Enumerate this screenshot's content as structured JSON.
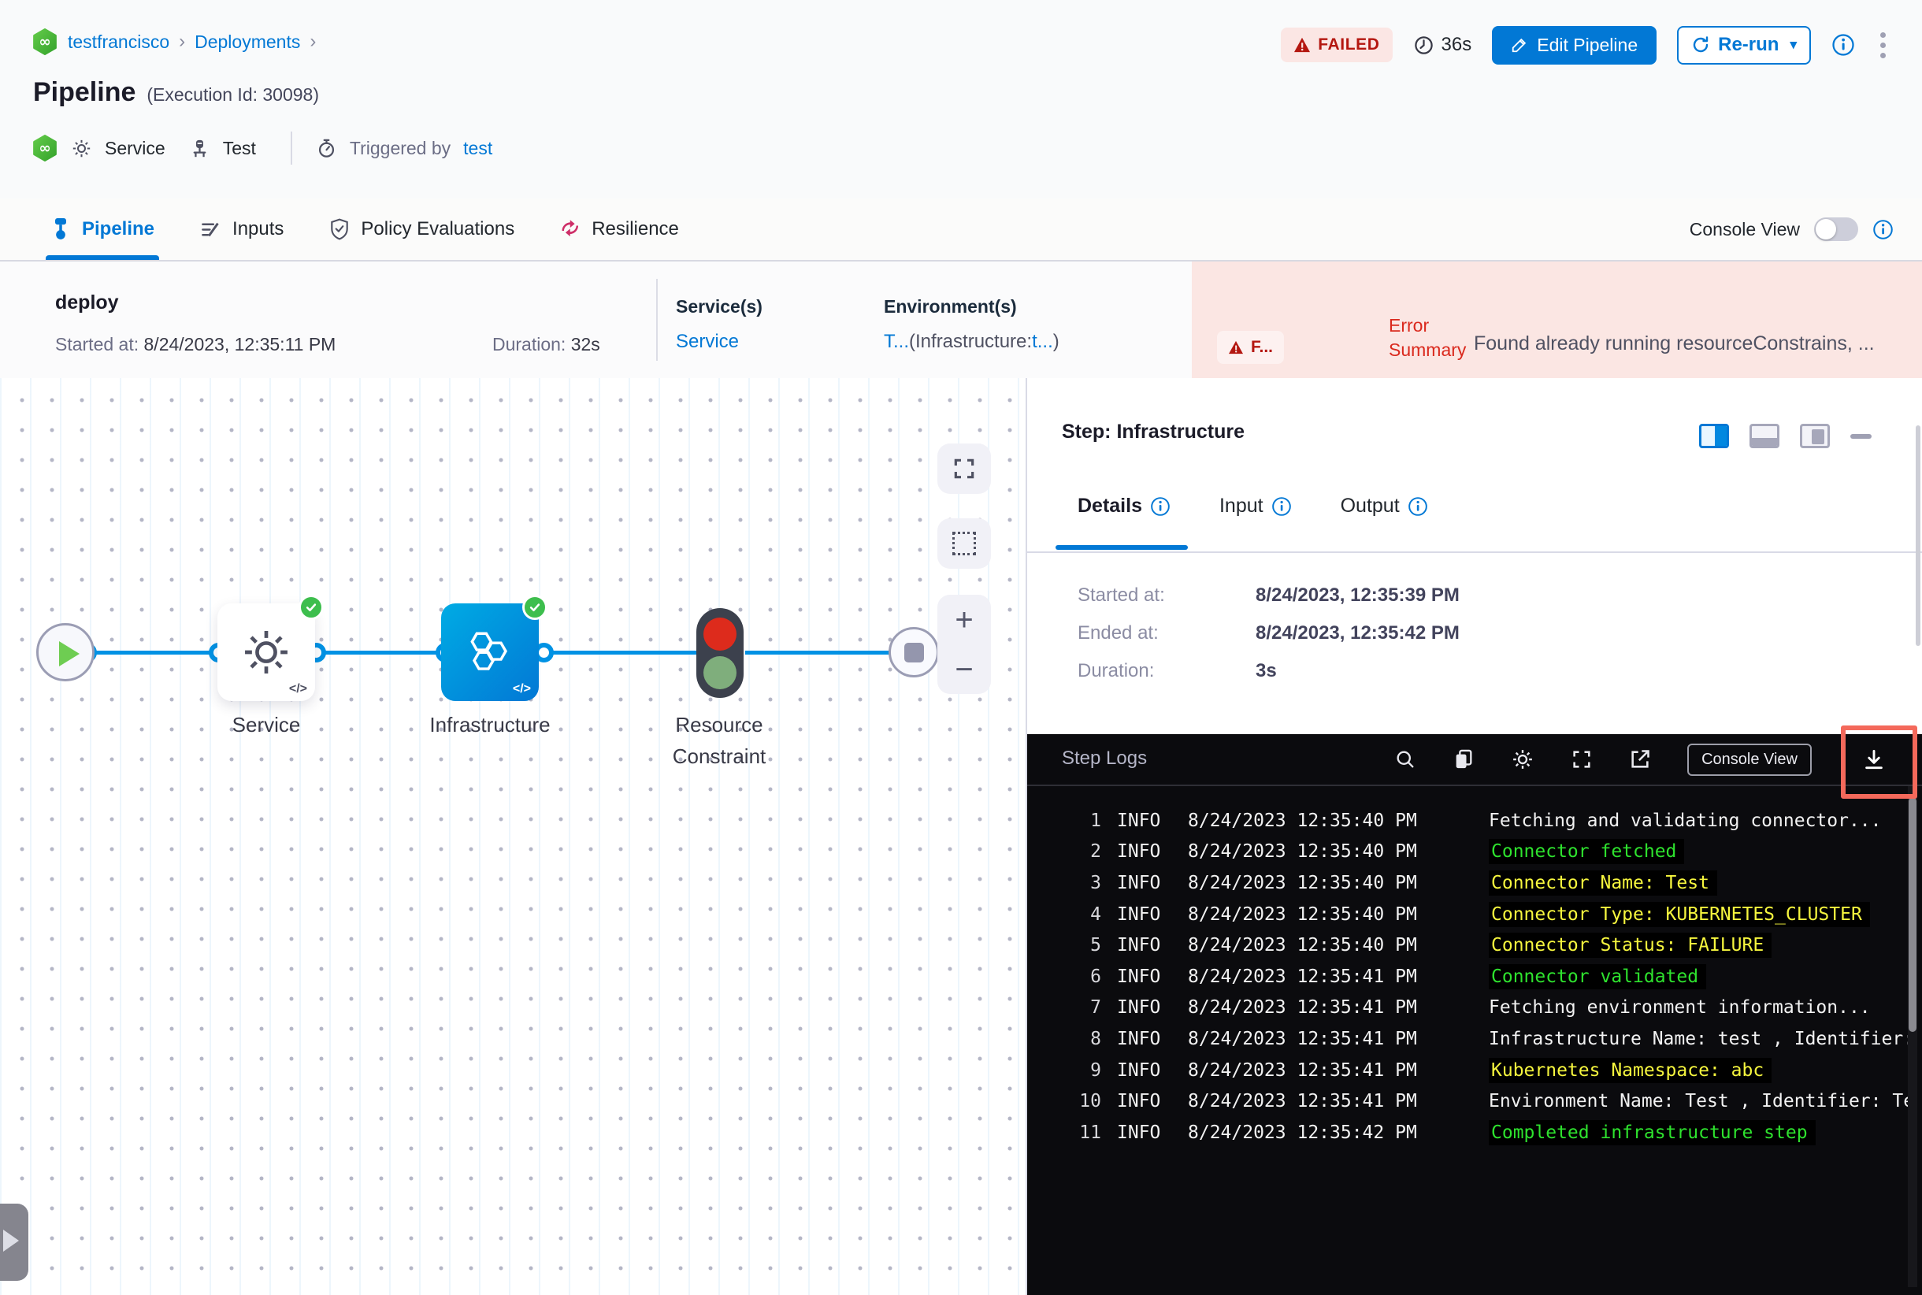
{
  "header": {
    "breadcrumb": {
      "org": "testfrancisco",
      "section": "Deployments",
      "separator": "›"
    },
    "title": "Pipeline",
    "execution_id": "(Execution Id: 30098)",
    "meta": {
      "service_label": "Service",
      "test_label": "Test",
      "triggered_by_label": "Triggered by",
      "triggered_by_value": "test"
    },
    "status_badge": "FAILED",
    "elapsed": "36s",
    "edit_pipeline_button": "Edit Pipeline",
    "rerun_button": "Re-run",
    "rerun_caret": "▾"
  },
  "tabs": {
    "items": [
      {
        "label": "Pipeline"
      },
      {
        "label": "Inputs"
      },
      {
        "label": "Policy Evaluations"
      },
      {
        "label": "Resilience"
      }
    ],
    "console_view_label": "Console View"
  },
  "run_summary": {
    "stage_name": "deploy",
    "started_label": "Started at:",
    "started_value": "8/24/2023, 12:35:11 PM",
    "duration_label": "Duration:",
    "duration_value": "32s",
    "services_label": "Service(s)",
    "services_value": "Service",
    "environments_label": "Environment(s)",
    "env_link1": "T...",
    "env_mid": "(Infrastructure:",
    "env_link2": "t...",
    "env_close": ")",
    "error_badge": "F...",
    "error_label": "Error Summary",
    "error_message": "Found already running resourceConstrains, ..."
  },
  "graph": {
    "nodes": [
      {
        "id": "start"
      },
      {
        "id": "service",
        "label": "Service"
      },
      {
        "id": "infrastructure",
        "label": "Infrastructure"
      },
      {
        "id": "resource-constraint",
        "label": "Resource Constraint"
      },
      {
        "id": "end"
      }
    ],
    "code_glyph": "</>",
    "zoom_in": "+",
    "zoom_out": "−"
  },
  "panel": {
    "title": "Step: Infrastructure",
    "tabs": [
      {
        "label": "Details"
      },
      {
        "label": "Input"
      },
      {
        "label": "Output"
      }
    ],
    "details": {
      "started_label": "Started at:",
      "started_value": "8/24/2023, 12:35:39 PM",
      "ended_label": "Ended at:",
      "ended_value": "8/24/2023, 12:35:42 PM",
      "duration_label": "Duration:",
      "duration_value": "3s"
    }
  },
  "step_logs": {
    "title": "Step Logs",
    "console_view_button": "Console View",
    "lines": [
      {
        "num": 1,
        "level": "INFO",
        "time": "8/24/2023 12:35:40 PM",
        "message": "Fetching and validating connector...",
        "color": "white",
        "highlight": false
      },
      {
        "num": 2,
        "level": "INFO",
        "time": "8/24/2023 12:35:40 PM",
        "message": "Connector fetched",
        "color": "green",
        "highlight": true
      },
      {
        "num": 3,
        "level": "INFO",
        "time": "8/24/2023 12:35:40 PM",
        "message": "Connector Name: Test",
        "color": "yellow",
        "highlight": true
      },
      {
        "num": 4,
        "level": "INFO",
        "time": "8/24/2023 12:35:40 PM",
        "message": "Connector Type: KUBERNETES_CLUSTER",
        "color": "yellow",
        "highlight": true
      },
      {
        "num": 5,
        "level": "INFO",
        "time": "8/24/2023 12:35:40 PM",
        "message": "Connector Status: FAILURE",
        "color": "yellow",
        "highlight": true
      },
      {
        "num": 6,
        "level": "INFO",
        "time": "8/24/2023 12:35:41 PM",
        "message": "Connector validated",
        "color": "green",
        "highlight": true
      },
      {
        "num": 7,
        "level": "INFO",
        "time": "8/24/2023 12:35:41 PM",
        "message": "Fetching environment information...",
        "color": "white",
        "highlight": false
      },
      {
        "num": 8,
        "level": "INFO",
        "time": "8/24/2023 12:35:41 PM",
        "message": "Infrastructure Name: test , Identifier:",
        "color": "white",
        "highlight": false
      },
      {
        "num": 9,
        "level": "INFO",
        "time": "8/24/2023 12:35:41 PM",
        "message": "Kubernetes Namespace: abc",
        "color": "yellow",
        "highlight": true
      },
      {
        "num": 10,
        "level": "INFO",
        "time": "8/24/2023 12:35:41 PM",
        "message": "Environment Name: Test , Identifier: Te",
        "color": "white",
        "highlight": false
      },
      {
        "num": 11,
        "level": "INFO",
        "time": "8/24/2023 12:35:42 PM",
        "message": "Completed infrastructure step",
        "color": "green",
        "highlight": true
      }
    ]
  },
  "colors": {
    "accent": "#0278D5",
    "failed_text": "#B41710",
    "error_bg": "#FBE6E3",
    "log_green": "#2EE22E",
    "log_yellow": "#F6F63E",
    "annotation": "#F4695B"
  }
}
